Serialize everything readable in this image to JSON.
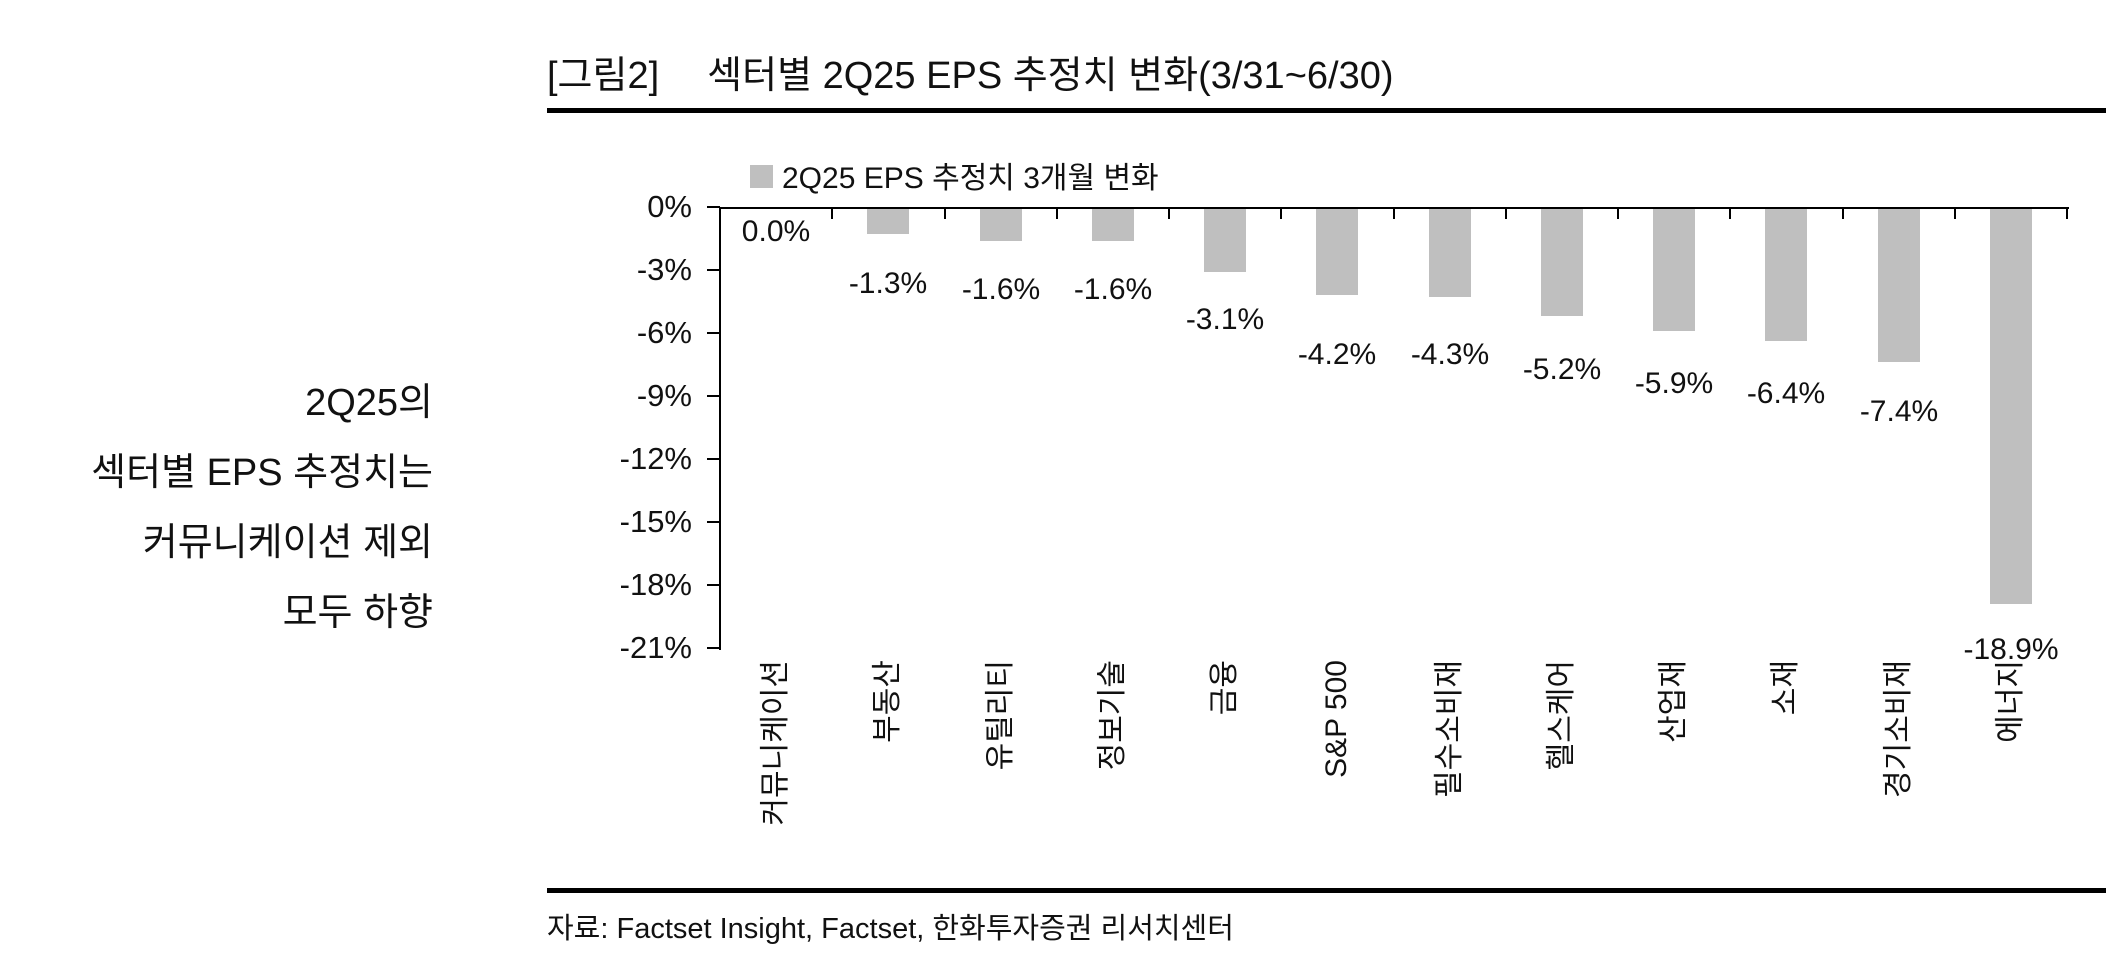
{
  "figure": {
    "tag": "[그림2]",
    "title": "섹터별 2Q25 EPS 추정치 변화(3/31~6/30)"
  },
  "commentary": {
    "lines": [
      "2Q25의",
      "섹터별 EPS 추정치는",
      "커뮤니케이션 제외",
      "모두 하향"
    ]
  },
  "legend": {
    "label": "2Q25 EPS 추정치 3개월 변화"
  },
  "source": "자료: Factset Insight, Factset, 한화투자증권 리서치센터",
  "colors": {
    "bar": "#BFBFBF",
    "axis": "#000000",
    "text": "#111111"
  },
  "chart_data": {
    "type": "bar",
    "title": "2Q25 EPS 추정치 3개월 변화",
    "categories": [
      "커뮤니케이션",
      "부동산",
      "유틸리티",
      "정보기술",
      "금융",
      "S&P 500",
      "필수소비재",
      "헬스케어",
      "산업재",
      "소재",
      "경기소비재",
      "에너지"
    ],
    "values": [
      0.0,
      -1.3,
      -1.6,
      -1.6,
      -3.1,
      -4.2,
      -4.3,
      -5.2,
      -5.9,
      -6.4,
      -7.4,
      -18.9
    ],
    "labels": [
      "0.0%",
      "-1.3%",
      "-1.6%",
      "-1.6%",
      "-3.1%",
      "-4.2%",
      "-4.3%",
      "-5.2%",
      "-5.9%",
      "-6.4%",
      "-7.4%",
      "-18.9%"
    ],
    "unit": "%",
    "xlabel": "",
    "ylabel": "",
    "y_ticks": [
      "0%",
      "-3%",
      "-6%",
      "-9%",
      "-12%",
      "-15%",
      "-18%",
      "-21%"
    ],
    "ylim": [
      0,
      -21
    ],
    "grid": false,
    "legend_position": "top-left"
  }
}
